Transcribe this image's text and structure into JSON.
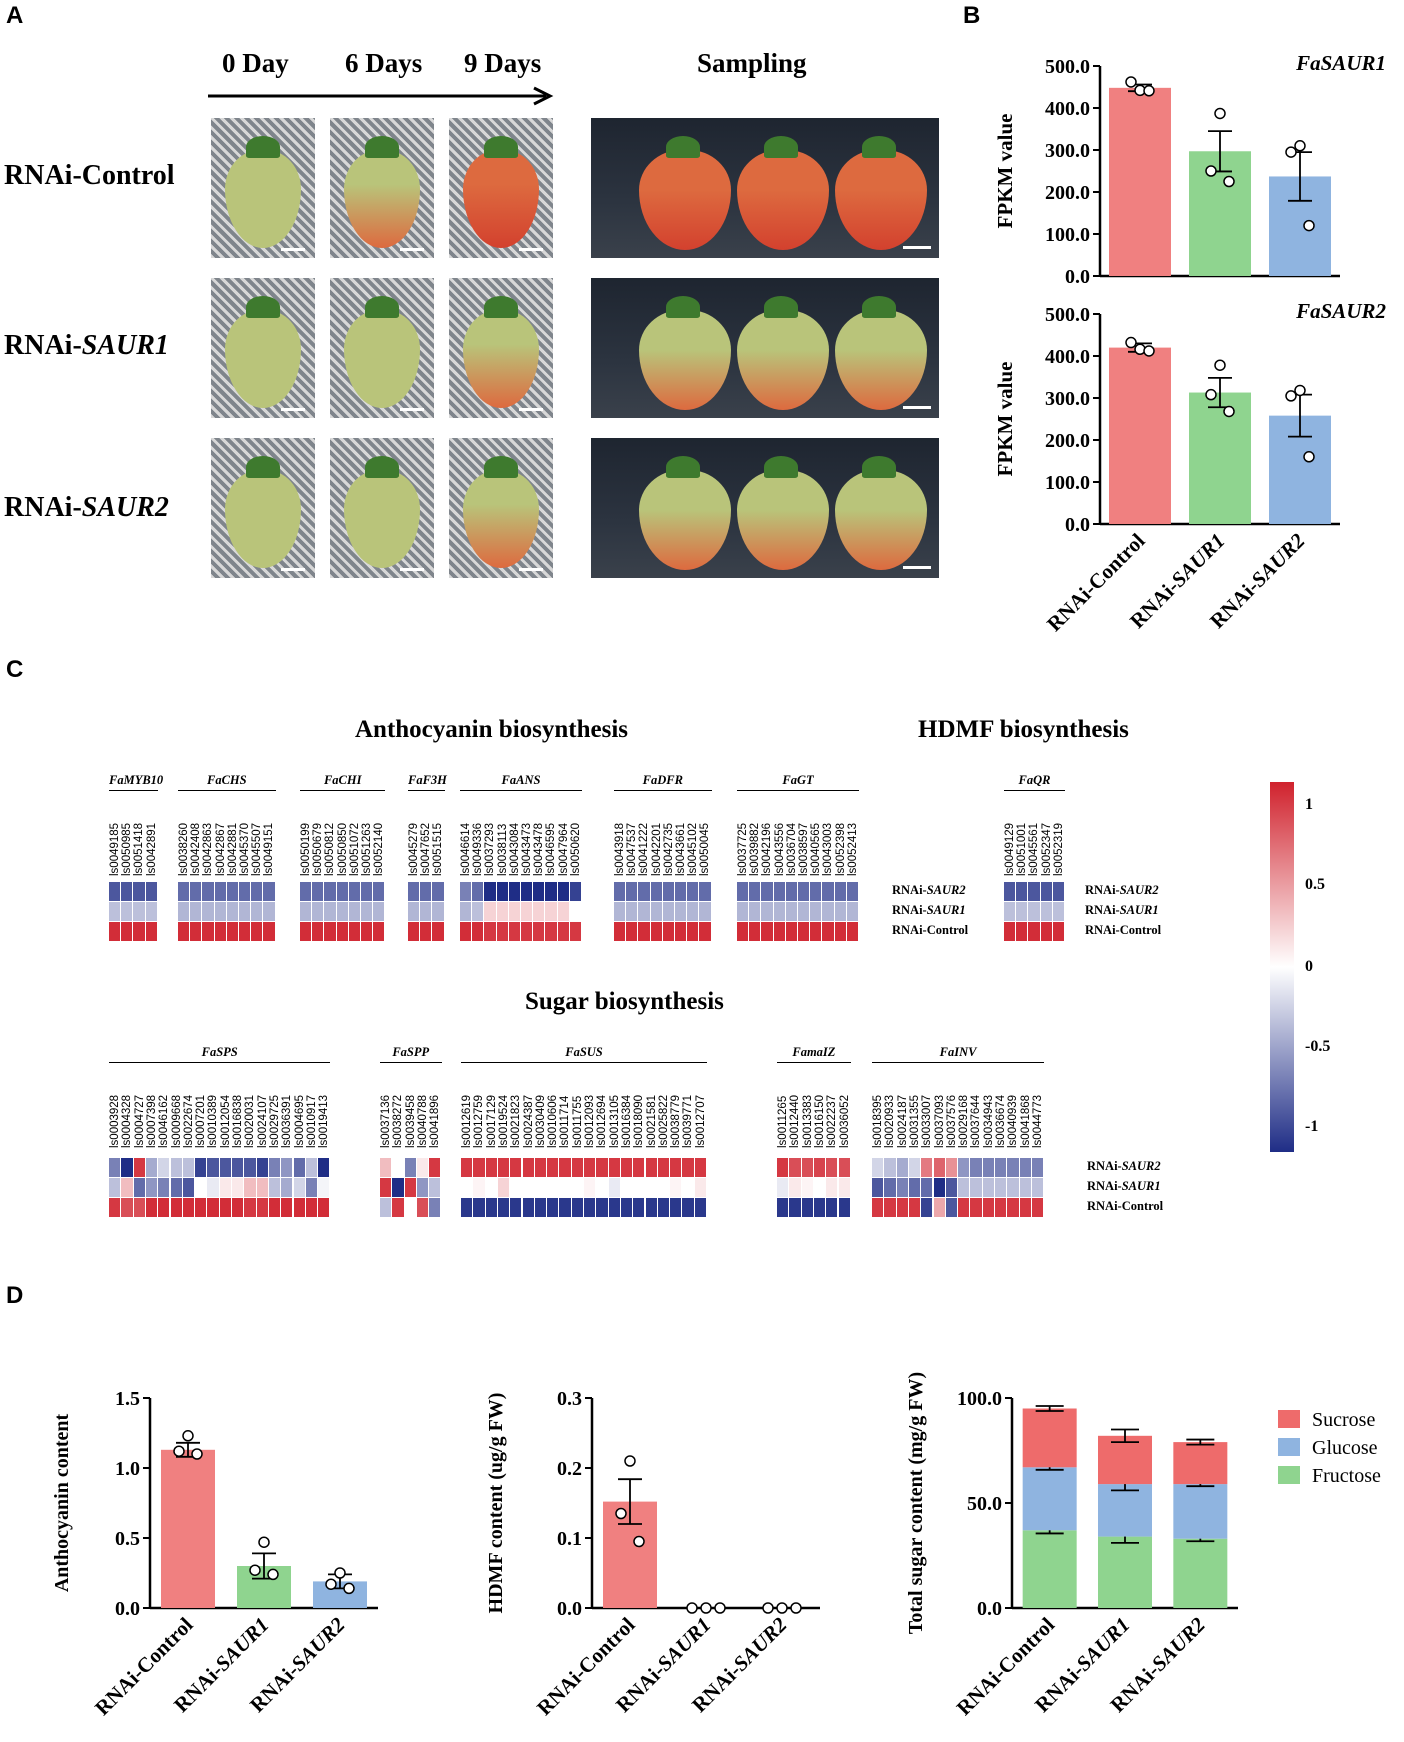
{
  "panels": {
    "a": "A",
    "b": "B",
    "c": "C",
    "d": "D"
  },
  "panel_a": {
    "time_labels": [
      "0 Day",
      "6 Days",
      "9 Days"
    ],
    "sampling_label": "Sampling",
    "rows": [
      {
        "prefix": "RNAi-",
        "name": "Control",
        "italic": false
      },
      {
        "prefix": "RNAi-",
        "name": "SAUR1",
        "italic": true
      },
      {
        "prefix": "RNAi-",
        "name": "SAUR2",
        "italic": true
      }
    ],
    "colors": {
      "green": "#b9c47a",
      "red": "#d3412e",
      "orange": "#dd6a3f"
    }
  },
  "heatmap": {
    "anthocyanin_title": "Anthocyanin biosynthesis",
    "hdmf_title": "HDMF biosynthesis",
    "sugar_title": "Sugar biosynthesis",
    "row_labels": [
      {
        "prefix": "RNAi-",
        "name": "SAUR2",
        "italic": true
      },
      {
        "prefix": "RNAi-",
        "name": "SAUR1",
        "italic": true
      },
      {
        "prefix": "RNAi-",
        "name": "Control",
        "italic": false
      }
    ],
    "colorbar_ticks": [
      "1",
      "0.5",
      "0",
      "-0.5",
      "-1"
    ],
    "colorbar_colors": {
      "high": "#d0222d",
      "mid": "#ffffff",
      "low": "#1f2d86"
    },
    "top_groups": [
      {
        "name": "FaMYB10",
        "genes": [
          "ls0049185",
          "ls0050985",
          "ls0051418",
          "ls0042891"
        ],
        "values": [
          [
            -0.8,
            -0.8,
            -0.8,
            -0.8
          ],
          [
            -0.3,
            -0.3,
            -0.3,
            -0.3
          ],
          [
            0.95,
            0.95,
            0.95,
            0.95
          ]
        ]
      },
      {
        "name": "FaCHS",
        "genes": [
          "ls0038260",
          "ls0042408",
          "ls0042863",
          "ls0042867",
          "ls0042881",
          "ls0045370",
          "ls0045507",
          "ls0049151"
        ],
        "values": [
          [
            -0.7,
            -0.7,
            -0.7,
            -0.7,
            -0.7,
            -0.7,
            -0.7,
            -0.7
          ],
          [
            -0.35,
            -0.35,
            -0.35,
            -0.35,
            -0.35,
            -0.35,
            -0.35,
            -0.35
          ],
          [
            0.95,
            0.95,
            0.95,
            0.95,
            0.95,
            0.95,
            0.95,
            0.95
          ]
        ]
      },
      {
        "name": "FaCHI",
        "genes": [
          "ls0050199",
          "ls0050679",
          "ls0050812",
          "ls0050850",
          "ls0051072",
          "ls0051263",
          "ls0052140"
        ],
        "values": [
          [
            -0.7,
            -0.7,
            -0.7,
            -0.7,
            -0.7,
            -0.7,
            -0.7
          ],
          [
            -0.35,
            -0.35,
            -0.35,
            -0.35,
            -0.35,
            -0.35,
            -0.35
          ],
          [
            0.95,
            0.95,
            0.95,
            0.95,
            0.95,
            0.95,
            0.95
          ]
        ]
      },
      {
        "name": "FaF3H",
        "genes": [
          "ls0045279",
          "ls0047652",
          "ls0051515"
        ],
        "values": [
          [
            -0.7,
            -0.7,
            -0.7
          ],
          [
            -0.35,
            -0.35,
            -0.35
          ],
          [
            0.95,
            0.95,
            0.95
          ]
        ]
      },
      {
        "name": "FaANS",
        "genes": [
          "ls0046614",
          "ls0049336",
          "ls0037293",
          "ls0038113",
          "ls0043084",
          "ls0043473",
          "ls0043478",
          "ls0046595",
          "ls0047964",
          "ls0050620"
        ],
        "values": [
          [
            -0.6,
            -0.7,
            -1,
            -1,
            -1,
            -1,
            -1,
            -1,
            -1,
            -0.9
          ],
          [
            -0.35,
            -0.3,
            0.2,
            0.2,
            0.2,
            0.2,
            0.2,
            0.2,
            0.2,
            0
          ],
          [
            0.95,
            0.95,
            0.9,
            0.9,
            0.9,
            0.9,
            0.9,
            0.9,
            0.9,
            0.9
          ]
        ]
      },
      {
        "name": "FaDFR",
        "genes": [
          "ls0043918",
          "ls0047537",
          "ls0041222",
          "ls0042201",
          "ls0042735",
          "ls0043661",
          "ls0045102",
          "ls0050045"
        ],
        "values": [
          [
            -0.7,
            -0.7,
            -0.7,
            -0.7,
            -0.7,
            -0.7,
            -0.7,
            -0.7
          ],
          [
            -0.35,
            -0.35,
            -0.35,
            -0.35,
            -0.35,
            -0.35,
            -0.35,
            -0.35
          ],
          [
            0.95,
            0.95,
            0.95,
            0.95,
            0.95,
            0.95,
            0.95,
            0.95
          ]
        ]
      },
      {
        "name": "FaGT",
        "genes": [
          "ls0037725",
          "ls0039882",
          "ls0042196",
          "ls0043556",
          "ls0036704",
          "ls0038597",
          "ls0040565",
          "ls0043003",
          "ls0052398",
          "ls0052413"
        ],
        "values": [
          [
            -0.7,
            -0.7,
            -0.7,
            -0.7,
            -0.7,
            -0.7,
            -0.7,
            -0.7,
            -0.7,
            -0.7
          ],
          [
            -0.35,
            -0.35,
            -0.35,
            -0.35,
            -0.35,
            -0.35,
            -0.35,
            -0.35,
            -0.35,
            -0.35
          ],
          [
            0.95,
            0.95,
            0.95,
            0.95,
            0.95,
            0.95,
            0.95,
            0.95,
            0.95,
            0.95
          ]
        ]
      },
      {
        "name": "FaQR",
        "genes": [
          "ls0049129",
          "ls0051001",
          "ls0045561",
          "ls0052347",
          "ls0052319"
        ],
        "values": [
          [
            -0.8,
            -0.8,
            -0.8,
            -0.8,
            -0.8
          ],
          [
            -0.3,
            -0.3,
            -0.3,
            -0.3,
            -0.3
          ],
          [
            0.95,
            0.95,
            0.95,
            0.95,
            0.95
          ]
        ]
      }
    ],
    "bottom_groups": [
      {
        "name": "FaSPS",
        "genes": [
          "ls0003928",
          "ls0004328",
          "ls0004727",
          "ls0007398",
          "ls0046162",
          "ls0009668",
          "ls0022674",
          "ls0007201",
          "ls0010389",
          "ls0012054",
          "ls0016838",
          "ls0020031",
          "ls0024107",
          "ls0029725",
          "ls0036391",
          "ls0004695",
          "ls0010917",
          "ls0019413"
        ],
        "values": [
          [
            -0.6,
            -1,
            0.9,
            -0.4,
            -0.2,
            -0.3,
            -0.3,
            -0.9,
            -0.8,
            -0.8,
            -0.8,
            -0.8,
            -0.9,
            -0.6,
            -0.5,
            -0.7,
            -0.3,
            -1
          ],
          [
            -0.3,
            0.3,
            -0.7,
            -0.5,
            -0.6,
            -0.7,
            -0.8,
            0,
            -0.1,
            0.1,
            0.1,
            0.3,
            0.3,
            -0.3,
            -0.4,
            -0.2,
            -0.6,
            -0.05
          ],
          [
            0.9,
            0.8,
            0.8,
            0.95,
            0.95,
            0.95,
            0.95,
            0.95,
            0.95,
            0.95,
            0.95,
            0.9,
            0.9,
            0.95,
            0.95,
            0.95,
            0.95,
            0.95
          ]
        ]
      },
      {
        "name": "FaSPP",
        "genes": [
          "ls0037136",
          "ls0038272",
          "ls0039458",
          "ls0040788",
          "ls0041896"
        ],
        "values": [
          [
            0.3,
            0,
            -0.6,
            0.1,
            0.9
          ],
          [
            0.9,
            -1,
            0.9,
            -0.5,
            -0.3
          ],
          [
            -0.3,
            0.9,
            0,
            0.8,
            -0.6
          ]
        ]
      },
      {
        "name": "FaSUS",
        "genes": [
          "ls0012619",
          "ls0012759",
          "ls0017129",
          "ls0019524",
          "ls0021823",
          "ls0024387",
          "ls0030409",
          "ls0010606",
          "ls0011714",
          "ls0011755",
          "ls0012093",
          "ls0012694",
          "ls0013105",
          "ls0016384",
          "ls0018090",
          "ls0021581",
          "ls0025822",
          "ls0038779",
          "ls0039771",
          "ls0012707"
        ],
        "values": [
          [
            0.9,
            0.9,
            0.9,
            0.9,
            0.9,
            0.9,
            0.9,
            0.9,
            0.9,
            0.9,
            0.9,
            0.9,
            0.9,
            0.9,
            0.9,
            0.9,
            0.9,
            0.9,
            0.9,
            0.9
          ],
          [
            0,
            0.05,
            0,
            0.2,
            0,
            0,
            0,
            0,
            0,
            0,
            0.05,
            0,
            -0.1,
            0,
            0,
            0,
            0,
            0.05,
            0,
            0.1
          ],
          [
            -0.95,
            -0.95,
            -0.95,
            -0.95,
            -0.95,
            -0.95,
            -0.95,
            -0.95,
            -0.95,
            -0.95,
            -0.95,
            -0.95,
            -0.95,
            -0.95,
            -0.95,
            -0.95,
            -0.95,
            -0.95,
            -0.95,
            -0.95
          ]
        ]
      },
      {
        "name": "FamaIZ",
        "genes": [
          "ls0011265",
          "ls0012440",
          "ls0013383",
          "ls0016150",
          "ls0022237",
          "ls0036052"
        ],
        "values": [
          [
            0.9,
            0.8,
            0.8,
            0.85,
            0.8,
            0.8
          ],
          [
            -0.1,
            0.1,
            0.05,
            0,
            0.1,
            0.1
          ],
          [
            -0.95,
            -0.95,
            -0.95,
            -0.95,
            -0.95,
            -0.95
          ]
        ]
      },
      {
        "name": "FaINV",
        "genes": [
          "ls0018395",
          "ls0020933",
          "ls0024187",
          "ls0031355",
          "ls0033007",
          "ls0037093",
          "ls0037576",
          "ls0029168",
          "ls0037644",
          "ls0034943",
          "ls0036674",
          "ls0040939",
          "ls0041868",
          "ls0044773"
        ],
        "values": [
          [
            -0.2,
            -0.3,
            -0.4,
            -0.2,
            0.6,
            0.7,
            0.5,
            -0.5,
            -0.6,
            -0.6,
            -0.6,
            -0.6,
            -0.6,
            -0.6
          ],
          [
            -0.8,
            -0.7,
            -0.6,
            -0.7,
            -0.7,
            -1,
            -0.8,
            -0.3,
            -0.3,
            -0.3,
            -0.3,
            -0.3,
            -0.3,
            -0.3
          ],
          [
            0.9,
            0.9,
            0.9,
            0.9,
            -0.9,
            0.4,
            -0.8,
            0.9,
            0.9,
            0.9,
            0.9,
            0.9,
            0.9,
            0.9
          ]
        ]
      }
    ]
  },
  "chart_data": [
    {
      "type": "bar",
      "panel": "B-top",
      "title": "FaSAUR1",
      "ylabel": "FPKM value",
      "categories": [
        "RNAi-Control",
        "RNAi-SAUR1",
        "RNAi-SAUR2"
      ],
      "values": [
        448,
        297,
        237
      ],
      "errors": [
        8,
        48,
        58
      ],
      "points": [
        [
          442,
          462,
          441
        ],
        [
          387,
          250,
          225
        ],
        [
          310,
          295,
          120
        ]
      ],
      "ylim": [
        0,
        500
      ],
      "yticks": [
        "0.0",
        "100.0",
        "200.0",
        "300.0",
        "400.0",
        "500.0"
      ],
      "colors": [
        "#f08080",
        "#8fd48f",
        "#8fb4e0"
      ]
    },
    {
      "type": "bar",
      "panel": "B-bottom",
      "title": "FaSAUR2",
      "ylabel": "FPKM value",
      "categories": [
        "RNAi-Control",
        "RNAi-SAUR1",
        "RNAi-SAUR2"
      ],
      "values": [
        420,
        313,
        258
      ],
      "errors": [
        10,
        35,
        50
      ],
      "points": [
        [
          416,
          432,
          412
        ],
        [
          378,
          308,
          268
        ],
        [
          318,
          305,
          160
        ]
      ],
      "ylim": [
        0,
        500
      ],
      "yticks": [
        "0.0",
        "100.0",
        "200.0",
        "300.0",
        "400.0",
        "500.0"
      ],
      "colors": [
        "#f08080",
        "#8fd48f",
        "#8fb4e0"
      ]
    },
    {
      "type": "bar",
      "panel": "D-anthocyanin",
      "title": "",
      "ylabel": "Anthocyanin content",
      "categories": [
        "RNAi-Control",
        "RNAi-SAUR1",
        "RNAi-SAUR2"
      ],
      "values": [
        1.13,
        0.3,
        0.19
      ],
      "errors": [
        0.05,
        0.09,
        0.05
      ],
      "points": [
        [
          1.23,
          1.12,
          1.1
        ],
        [
          0.47,
          0.27,
          0.24
        ],
        [
          0.25,
          0.17,
          0.14
        ]
      ],
      "ylim": [
        0,
        1.5
      ],
      "yticks": [
        "0.0",
        "0.5",
        "1.0",
        "1.5"
      ],
      "colors": [
        "#f08080",
        "#8fd48f",
        "#8fb4e0"
      ]
    },
    {
      "type": "bar",
      "panel": "D-hdmf",
      "title": "",
      "ylabel": "HDMF content (ug/g FW)",
      "categories": [
        "RNAi-Control",
        "RNAi-SAUR1",
        "RNAi-SAUR2"
      ],
      "values": [
        0.152,
        0,
        0
      ],
      "errors": [
        0.032,
        0,
        0
      ],
      "points": [
        [
          0.21,
          0.135,
          0.095
        ],
        [
          0,
          0,
          0
        ],
        [
          0,
          0,
          0
        ]
      ],
      "ylim": [
        0,
        0.3
      ],
      "yticks": [
        "0.0",
        "0.1",
        "0.2",
        "0.3"
      ],
      "colors": [
        "#f08080",
        "#8fd48f",
        "#8fb4e0"
      ]
    },
    {
      "type": "stacked_bar",
      "panel": "D-sugar",
      "title": "",
      "ylabel": "Total sugar content (mg/g FW)",
      "categories": [
        "RNAi-Control",
        "RNAi-SAUR1",
        "RNAi-SAUR2"
      ],
      "series": [
        {
          "name": "Fructose",
          "color": "#8fd48f",
          "values": [
            37,
            34,
            33
          ],
          "errors": [
            1.5,
            3,
            1.2
          ]
        },
        {
          "name": "Glucose",
          "color": "#8fb4e0",
          "values": [
            30,
            25,
            26
          ],
          "errors": [
            1.2,
            3,
            1
          ]
        },
        {
          "name": "Sucrose",
          "color": "#ee6b6b",
          "values": [
            28,
            23,
            20
          ],
          "errors": [
            1.2,
            3,
            1.2
          ]
        }
      ],
      "legend_order": [
        "Sucrose",
        "Glucose",
        "Fructose"
      ],
      "ylim": [
        0,
        100
      ],
      "yticks": [
        "0.0",
        "50.0",
        "100.0"
      ]
    }
  ]
}
